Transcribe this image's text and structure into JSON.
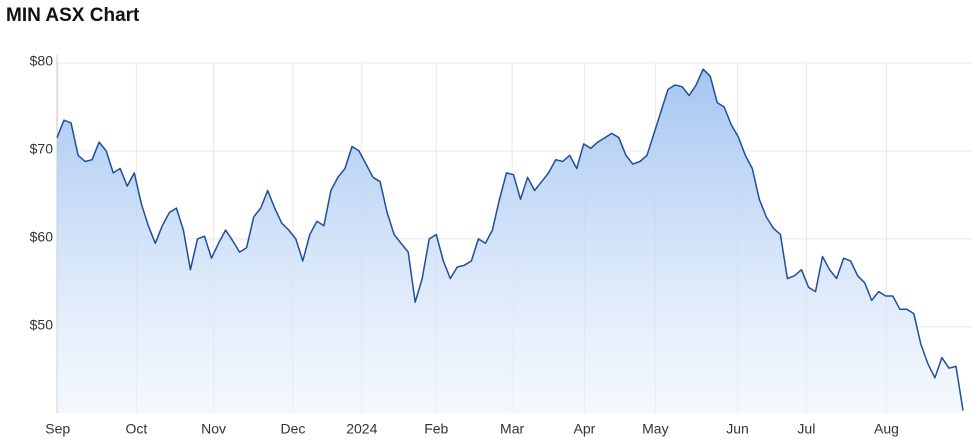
{
  "chart_data": {
    "type": "area",
    "title": "MIN ASX Chart",
    "color": "#1f4e9c",
    "grid": true,
    "values": [
      71.5,
      73.5,
      73.2,
      69.5,
      68.8,
      69,
      71,
      70,
      67.5,
      68,
      66,
      67.5,
      64,
      61.5,
      59.5,
      61.5,
      63,
      63.5,
      61,
      56.5,
      60,
      60.3,
      57.8,
      59.5,
      61,
      59.8,
      58.5,
      59,
      62.5,
      63.5,
      65.5,
      63.5,
      61.8,
      61,
      60,
      57.5,
      60.5,
      62,
      61.5,
      65.5,
      67,
      68,
      70.5,
      70,
      68.5,
      67,
      66.5,
      63,
      60.5,
      59.5,
      58.5,
      52.8,
      55.5,
      60,
      60.5,
      57.5,
      55.5,
      56.8,
      57,
      57.5,
      60,
      59.5,
      61,
      64.5,
      67.5,
      67.3,
      64.5,
      67,
      65.5,
      66.5,
      67.5,
      69,
      68.8,
      69.5,
      68,
      70.8,
      70.3,
      71,
      71.5,
      72,
      71.5,
      69.5,
      68.5,
      68.8,
      69.5,
      72,
      74.5,
      77,
      77.5,
      77.3,
      76.3,
      77.5,
      79.3,
      78.5,
      75.5,
      75,
      73,
      71.6,
      69.5,
      68,
      64.5,
      62.5,
      61.2,
      60.5,
      55.5,
      55.8,
      56.5,
      54.5,
      54,
      58,
      56.5,
      55.5,
      57.8,
      57.5,
      55.8,
      55,
      53,
      54,
      53.5,
      53.5,
      52,
      52,
      51.5,
      48,
      45.8,
      44.2,
      46.5,
      45.3,
      45.5,
      40.5
    ],
    "xlim": [
      0,
      129
    ],
    "xticks": [
      {
        "value": 0.1,
        "label": "Sep"
      },
      {
        "value": 11.3,
        "label": "Oct"
      },
      {
        "value": 22.3,
        "label": "Nov"
      },
      {
        "value": 33.6,
        "label": "Dec"
      },
      {
        "value": 43.4,
        "label": "2024"
      },
      {
        "value": 54,
        "label": "Feb"
      },
      {
        "value": 64.8,
        "label": "Mar"
      },
      {
        "value": 75.1,
        "label": "Apr"
      },
      {
        "value": 85.2,
        "label": "May"
      },
      {
        "value": 96.9,
        "label": "Jun"
      },
      {
        "value": 106.7,
        "label": "Jul"
      },
      {
        "value": 118.1,
        "label": "Aug"
      }
    ],
    "ylim": [
      40.2,
      80
    ],
    "yticks": [
      {
        "value": 50,
        "label": "$50"
      },
      {
        "value": 60,
        "label": "$60"
      },
      {
        "value": 70,
        "label": "$70"
      },
      {
        "value": 80,
        "label": "$80"
      }
    ]
  }
}
